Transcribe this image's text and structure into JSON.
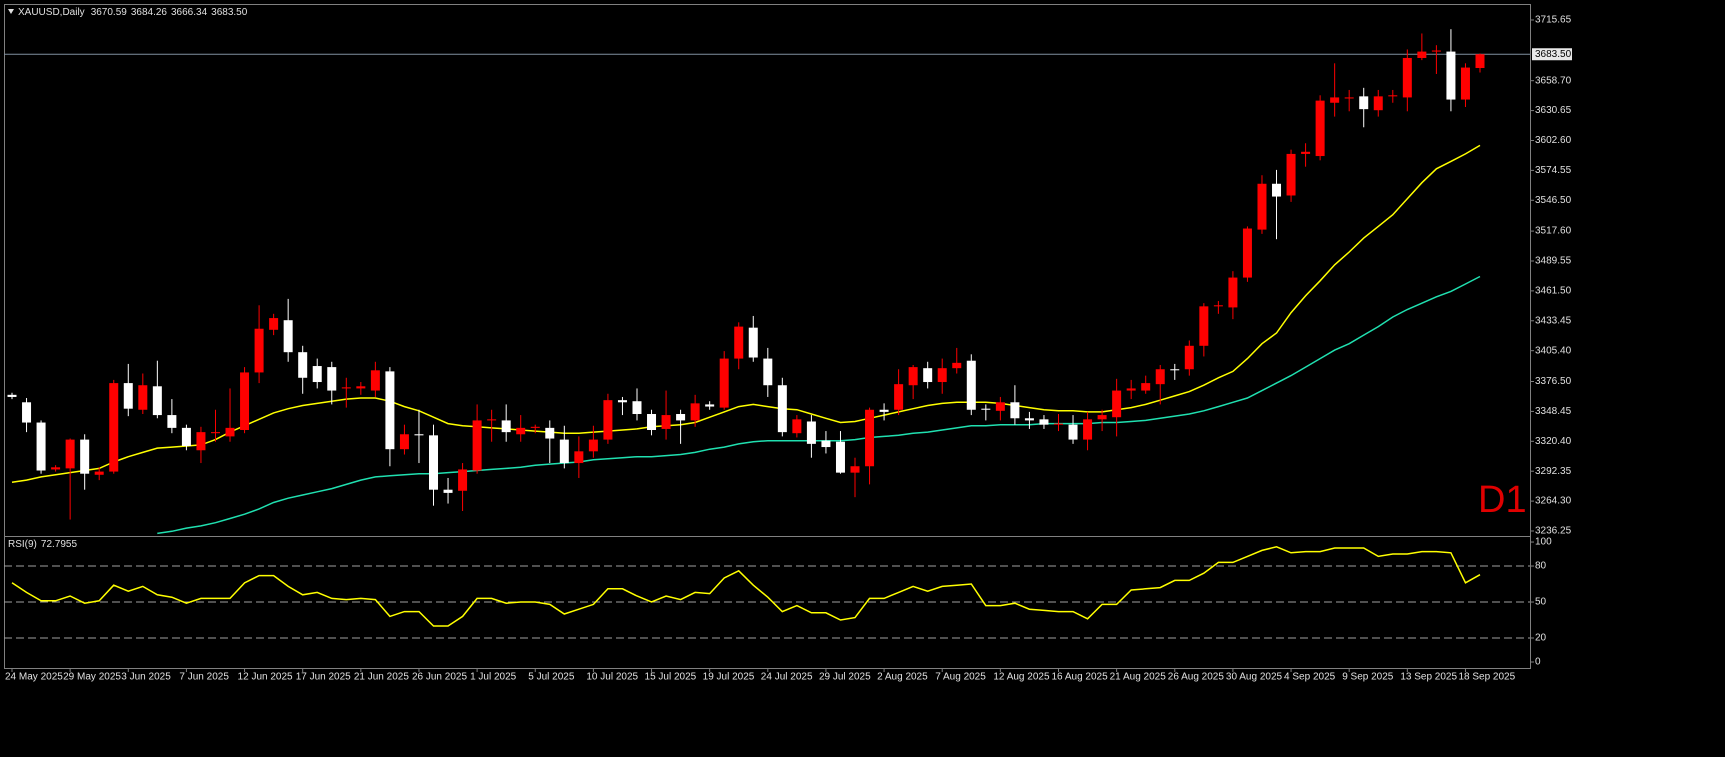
{
  "chart_data": [
    {
      "type": "candlestick",
      "title": "XAUUSD,Daily",
      "title_values": [
        "3670.59",
        "3684.26",
        "3666.34",
        "3683.50"
      ],
      "categories": [
        "24 May 2025",
        null,
        null,
        null,
        "29 May 2025",
        null,
        null,
        null,
        "3 Jun 2025",
        null,
        null,
        null,
        "7 Jun 2025",
        null,
        null,
        null,
        "12 Jun 2025",
        null,
        null,
        null,
        "17 Jun 2025",
        null,
        null,
        null,
        "21 Jun 2025",
        null,
        null,
        null,
        "26 Jun 2025",
        null,
        null,
        null,
        "1 Jul 2025",
        null,
        null,
        null,
        "5 Jul 2025",
        null,
        null,
        null,
        "10 Jul 2025",
        null,
        null,
        null,
        "15 Jul 2025",
        null,
        null,
        null,
        "19 Jul 2025",
        null,
        null,
        null,
        "24 Jul 2025",
        null,
        null,
        null,
        "29 Jul 2025",
        null,
        null,
        null,
        "2 Aug 2025",
        null,
        null,
        null,
        "7 Aug 2025",
        null,
        null,
        null,
        "12 Aug 2025",
        null,
        null,
        null,
        "16 Aug 2025",
        null,
        null,
        null,
        "21 Aug 2025",
        null,
        null,
        null,
        "26 Aug 2025",
        null,
        null,
        null,
        "30 Aug 2025",
        null,
        null,
        null,
        "4 Sep 2025",
        null,
        null,
        null,
        "9 Sep 2025",
        null,
        null,
        null,
        "13 Sep 2025",
        null,
        null,
        null,
        "18 Sep 2025",
        null
      ],
      "open": [
        3364,
        3357,
        3338,
        3294,
        3295,
        3322,
        3289,
        3292,
        3375,
        3350,
        3372,
        3345,
        3333,
        3312,
        3328,
        3325,
        3331,
        3385,
        3425,
        3434,
        3404,
        3391,
        3390,
        3370,
        3370,
        3368,
        3386,
        3313,
        3327,
        3326,
        3275,
        3274,
        3293,
        3340,
        3340,
        3327,
        3333,
        3333,
        3322,
        3300,
        3311,
        3322,
        3359,
        3358,
        3346,
        3332,
        3346,
        3340,
        3355,
        3352,
        3398,
        3427,
        3398,
        3373,
        3328,
        3339,
        3321,
        3320,
        3291,
        3297,
        3350,
        3350,
        3373,
        3389,
        3376,
        3389,
        3396,
        3351,
        3349,
        3357,
        3342,
        3341,
        3336,
        3336,
        3322,
        3341,
        3343,
        3368,
        3368,
        3374,
        3388,
        3388,
        3410,
        3447,
        3446,
        3474,
        3519,
        3562,
        3551,
        3590,
        3588,
        3638,
        3642,
        3644,
        3631,
        3644,
        3643,
        3680,
        3686,
        3686,
        3641,
        3670.59
      ],
      "high": [
        3366,
        3361,
        3340,
        3298,
        3323,
        3327,
        3296,
        3378,
        3393,
        3384,
        3396,
        3360,
        3336,
        3334,
        3350,
        3370,
        3390,
        3448,
        3440,
        3454,
        3410,
        3398,
        3395,
        3380,
        3376,
        3395,
        3390,
        3336,
        3350,
        3336,
        3286,
        3300,
        3355,
        3350,
        3355,
        3345,
        3336,
        3340,
        3335,
        3325,
        3335,
        3365,
        3362,
        3370,
        3350,
        3368,
        3350,
        3364,
        3358,
        3405,
        3432,
        3438,
        3408,
        3380,
        3345,
        3345,
        3330,
        3330,
        3305,
        3352,
        3356,
        3388,
        3392,
        3395,
        3398,
        3408,
        3402,
        3355,
        3362,
        3373,
        3348,
        3345,
        3346,
        3345,
        3348,
        3350,
        3379,
        3378,
        3382,
        3392,
        3393,
        3415,
        3450,
        3452,
        3480,
        3522,
        3570,
        3575,
        3594,
        3600,
        3645,
        3675,
        3650,
        3652,
        3650,
        3650,
        3688,
        3703,
        3692,
        3707,
        3675,
        3684.26
      ],
      "low": [
        3360,
        3329,
        3290,
        3292,
        3247,
        3275,
        3284,
        3290,
        3344,
        3346,
        3342,
        3328,
        3312,
        3300,
        3320,
        3320,
        3328,
        3375,
        3420,
        3395,
        3365,
        3370,
        3355,
        3352,
        3364,
        3362,
        3297,
        3308,
        3300,
        3260,
        3262,
        3255,
        3290,
        3320,
        3320,
        3320,
        3328,
        3300,
        3295,
        3286,
        3305,
        3318,
        3345,
        3340,
        3326,
        3322,
        3318,
        3334,
        3350,
        3350,
        3388,
        3395,
        3362,
        3325,
        3324,
        3305,
        3309,
        3290,
        3268,
        3280,
        3340,
        3345,
        3360,
        3370,
        3365,
        3384,
        3345,
        3340,
        3340,
        3336,
        3332,
        3332,
        3330,
        3318,
        3312,
        3330,
        3325,
        3360,
        3365,
        3355,
        3378,
        3382,
        3400,
        3440,
        3435,
        3470,
        3515,
        3510,
        3545,
        3578,
        3584,
        3625,
        3630,
        3615,
        3625,
        3638,
        3630,
        3678,
        3665,
        3630,
        3634,
        3666.34
      ],
      "close": [
        3362,
        3338,
        3293,
        3296,
        3322,
        3290,
        3292,
        3375,
        3351,
        3373,
        3345,
        3333,
        3316,
        3329,
        3329,
        3333,
        3385,
        3426,
        3436,
        3404,
        3380,
        3376,
        3368,
        3371,
        3372,
        3387,
        3313,
        3327,
        3326,
        3275,
        3272,
        3294,
        3340,
        3341,
        3329,
        3333,
        3334,
        3323,
        3300,
        3311,
        3322,
        3359,
        3357,
        3346,
        3331,
        3345,
        3340,
        3356,
        3353,
        3398,
        3428,
        3399,
        3373,
        3329,
        3341,
        3318,
        3315,
        3291,
        3297,
        3350,
        3348,
        3374,
        3390,
        3376,
        3389,
        3394,
        3350,
        3350,
        3357,
        3342,
        3340,
        3336,
        3337,
        3322,
        3341,
        3345,
        3368,
        3370,
        3375,
        3388,
        3387,
        3410,
        3447,
        3448,
        3474,
        3520,
        3562,
        3550,
        3590,
        3592,
        3640,
        3643,
        3643,
        3632,
        3644,
        3645,
        3680,
        3686,
        3687,
        3641,
        3671,
        3683.5
      ],
      "up_color": "#ff0000",
      "down_color": "#ffffff",
      "ma_lines": [
        {
          "color": "#ffff00",
          "values": [
            3282,
            3284,
            3287,
            3289,
            3291,
            3293,
            3295,
            3301,
            3306,
            3310,
            3314,
            3315,
            3316,
            3317,
            3322,
            3329,
            3335,
            3341,
            3347,
            3351,
            3354,
            3356,
            3358,
            3360,
            3361,
            3361,
            3358,
            3353,
            3349,
            3343,
            3337,
            3335,
            3334,
            3333,
            3332,
            3331,
            3330,
            3329,
            3328,
            3328,
            3329,
            3330,
            3331,
            3332,
            3334,
            3335,
            3336,
            3338,
            3343,
            3348,
            3353,
            3355,
            3353,
            3351,
            3350,
            3346,
            3342,
            3338,
            3339,
            3342,
            3345,
            3348,
            3351,
            3354,
            3356,
            3357,
            3357,
            3357,
            3356,
            3354,
            3352,
            3350,
            3349,
            3349,
            3348,
            3348,
            3350,
            3352,
            3355,
            3359,
            3363,
            3367,
            3373,
            3380,
            3386,
            3398,
            3412,
            3422,
            3441,
            3457,
            3471,
            3486,
            3498,
            3511,
            3522,
            3533,
            3548,
            3563,
            3576,
            3583,
            3590,
            3598
          ]
        },
        {
          "color": "#20e0b0",
          "values": [
            null,
            null,
            null,
            null,
            null,
            null,
            null,
            null,
            null,
            null,
            3234,
            3236,
            3239,
            3241,
            3244,
            3248,
            3252,
            3257,
            3263,
            3267,
            3270,
            3273,
            3276,
            3280,
            3284,
            3287,
            3288,
            3289,
            3290,
            3290,
            3291,
            3292,
            3293,
            3294,
            3295,
            3296,
            3298,
            3299,
            3300,
            3301,
            3303,
            3304,
            3305,
            3306,
            3306,
            3307,
            3308,
            3310,
            3313,
            3315,
            3318,
            3320,
            3321,
            3321,
            3321,
            3321,
            3321,
            3321,
            3322,
            3324,
            3325,
            3326,
            3328,
            3329,
            3331,
            3333,
            3335,
            3335,
            3336,
            3336,
            3336,
            3337,
            3337,
            3337,
            3337,
            3338,
            3338,
            3339,
            3340,
            3342,
            3344,
            3346,
            3349,
            3353,
            3357,
            3361,
            3368,
            3375,
            3382,
            3390,
            3398,
            3406,
            3412,
            3420,
            3428,
            3437,
            3444,
            3450,
            3456,
            3461,
            3468,
            3475
          ]
        }
      ],
      "ylim": [
        3232.5,
        3729.7
      ],
      "yticks": [
        3715.65,
        {
          "value": 3658.7,
          "label": "3658.70"
        },
        3630.65,
        {
          "value": 3602.6,
          "label": "3602.60"
        },
        3574.55,
        {
          "value": 3546.5,
          "label": "3546.50"
        },
        {
          "value": 3517.6,
          "label": "3517.60"
        },
        3489.55,
        {
          "value": 3461.5,
          "label": "3461.50"
        },
        3433.45,
        {
          "value": 3405.4,
          "label": "3405.40"
        },
        {
          "value": 3376.5,
          "label": "3376.50"
        },
        3348.45,
        {
          "value": 3320.4,
          "label": "3320.40"
        },
        3292.35,
        {
          "value": 3264.3,
          "label": "3264.30"
        },
        3236.25
      ],
      "price_line": {
        "value": 3683.5,
        "label": "3683.50"
      },
      "annotation": "D1"
    },
    {
      "type": "line",
      "title": "RSI(9)",
      "color": "#ffff00",
      "values": [
        66,
        58,
        51,
        51,
        55,
        49,
        51,
        64,
        59,
        63,
        56,
        54,
        49,
        53,
        53,
        53,
        66,
        72,
        72,
        63,
        56,
        58,
        53,
        52,
        53,
        52,
        38,
        42,
        42,
        30,
        30,
        38,
        53,
        53,
        49,
        50,
        50,
        48,
        40,
        44,
        48,
        61,
        61,
        55,
        50,
        55,
        52,
        58,
        57,
        70,
        76,
        64,
        54,
        42,
        47,
        41,
        41,
        35,
        37,
        53,
        53,
        58,
        63,
        59,
        63,
        64,
        65,
        47,
        47,
        49,
        44,
        43,
        42,
        42,
        36,
        48,
        48,
        60,
        61,
        62,
        68,
        68,
        74,
        83,
        83,
        88,
        93,
        96,
        91,
        92,
        92,
        95,
        95,
        95,
        88,
        90,
        90,
        92,
        92,
        91,
        66,
        72.7955
      ],
      "ylim": [
        -5,
        104.2
      ],
      "yticks": [
        0,
        20,
        50,
        80,
        100
      ],
      "levels": [
        20,
        50,
        80
      ]
    }
  ]
}
